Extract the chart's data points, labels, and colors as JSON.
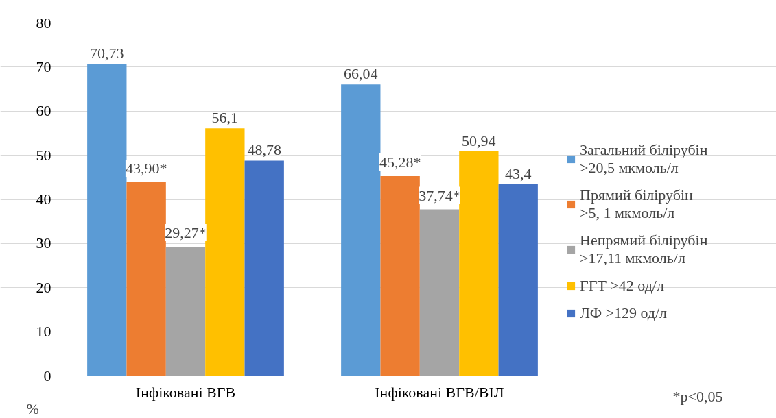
{
  "chart_data": {
    "type": "bar",
    "categories": [
      "Інфіковані ВГВ",
      "Інфіковані ВГВ/ВІЛ"
    ],
    "series": [
      {
        "name": "Загальний білірубін\n>20,5 мкмоль/л",
        "color": "#5b9bd5",
        "values": [
          70.73,
          66.04
        ],
        "value_labels": [
          "70,73",
          "66,04"
        ]
      },
      {
        "name": "Прямий білірубін\n>5, 1 мкмоль/л",
        "color": "#ed7d31",
        "values": [
          43.9,
          45.28
        ],
        "value_labels": [
          "43,90*",
          "45,28*"
        ]
      },
      {
        "name": "Непрямий білірубін\n>17,11 мкмоль/л",
        "color": "#a5a5a5",
        "values": [
          29.27,
          37.74
        ],
        "value_labels": [
          "29,27*",
          "37,74*"
        ]
      },
      {
        "name": "ГГТ >42 од/л",
        "color": "#ffc000",
        "values": [
          56.1,
          50.94
        ],
        "value_labels": [
          "56,1",
          "50,94"
        ]
      },
      {
        "name": "ЛФ >129 од/л",
        "color": "#4472c4",
        "values": [
          48.78,
          43.4
        ],
        "value_labels": [
          "48,78",
          "43,4"
        ]
      }
    ],
    "ylabel": "%",
    "ylim": [
      0,
      80
    ],
    "yticks": [
      0,
      10,
      20,
      30,
      40,
      50,
      60,
      70,
      80
    ],
    "grid": "y",
    "legend": "right",
    "annotations": [
      "*p<0,05"
    ]
  }
}
